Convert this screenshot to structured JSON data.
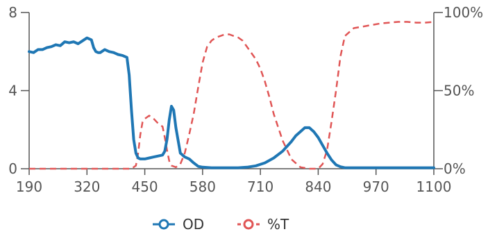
{
  "chart_data": {
    "type": "line",
    "x_ticks": [
      "190",
      "320",
      "450",
      "580",
      "710",
      "840",
      "970",
      "1100"
    ],
    "xlim": [
      190,
      1100
    ],
    "y_left": {
      "ticks": [
        "0",
        "4",
        "8"
      ],
      "lim": [
        0,
        8
      ]
    },
    "y_right": {
      "ticks": [
        "0%",
        "50%",
        "100%"
      ],
      "lim": [
        0,
        100
      ]
    },
    "grid": false,
    "legend_position": "bottom-center",
    "series": [
      {
        "name": "OD",
        "color": "#1f77b4",
        "style": "solid",
        "axis": "left",
        "x": [
          190,
          200,
          210,
          220,
          230,
          240,
          250,
          260,
          270,
          280,
          290,
          300,
          310,
          320,
          330,
          335,
          340,
          345,
          350,
          360,
          370,
          380,
          390,
          400,
          410,
          415,
          420,
          425,
          430,
          435,
          440,
          450,
          460,
          470,
          480,
          490,
          495,
          500,
          505,
          510,
          515,
          520,
          530,
          540,
          550,
          560,
          570,
          580,
          600,
          620,
          640,
          660,
          680,
          700,
          720,
          740,
          760,
          780,
          790,
          800,
          810,
          820,
          830,
          840,
          850,
          860,
          870,
          880,
          890,
          900,
          920,
          950,
          1000,
          1050,
          1100
        ],
        "y": [
          6.0,
          5.95,
          6.1,
          6.1,
          6.2,
          6.25,
          6.35,
          6.3,
          6.5,
          6.45,
          6.5,
          6.4,
          6.55,
          6.7,
          6.6,
          6.2,
          6.0,
          5.95,
          5.95,
          6.1,
          6.0,
          5.95,
          5.85,
          5.8,
          5.7,
          4.8,
          3.0,
          1.5,
          0.8,
          0.55,
          0.5,
          0.5,
          0.55,
          0.6,
          0.65,
          0.7,
          0.9,
          1.5,
          2.5,
          3.2,
          3.0,
          2.1,
          0.8,
          0.6,
          0.5,
          0.3,
          0.12,
          0.08,
          0.05,
          0.05,
          0.05,
          0.05,
          0.08,
          0.15,
          0.3,
          0.55,
          0.9,
          1.4,
          1.7,
          1.9,
          2.1,
          2.1,
          1.9,
          1.6,
          1.2,
          0.8,
          0.45,
          0.2,
          0.1,
          0.05,
          0.05,
          0.05,
          0.05,
          0.05,
          0.05
        ]
      },
      {
        "name": "%T",
        "color": "#e05555",
        "style": "dashed",
        "axis": "right",
        "x": [
          190,
          250,
          300,
          350,
          400,
          420,
          430,
          435,
          440,
          445,
          450,
          460,
          470,
          480,
          490,
          495,
          500,
          505,
          510,
          520,
          530,
          540,
          550,
          560,
          570,
          580,
          590,
          600,
          610,
          620,
          630,
          640,
          650,
          660,
          670,
          680,
          690,
          700,
          710,
          720,
          730,
          740,
          760,
          780,
          800,
          820,
          830,
          840,
          850,
          860,
          870,
          880,
          890,
          900,
          920,
          940,
          960,
          980,
          1000,
          1020,
          1040,
          1060,
          1080,
          1100
        ],
        "y": [
          0,
          0,
          0,
          0,
          0,
          0,
          2,
          10,
          22,
          30,
          32,
          34,
          32,
          29,
          27,
          20,
          12,
          5,
          2,
          1,
          3,
          10,
          22,
          35,
          52,
          68,
          78,
          82,
          84,
          85,
          86,
          86,
          85,
          84,
          82,
          78,
          74,
          70,
          64,
          56,
          46,
          35,
          18,
          6,
          1,
          0,
          0,
          0,
          3,
          12,
          30,
          50,
          72,
          85,
          90,
          91,
          92,
          93,
          93.5,
          94,
          94,
          93.5,
          93.5,
          94
        ]
      }
    ]
  }
}
